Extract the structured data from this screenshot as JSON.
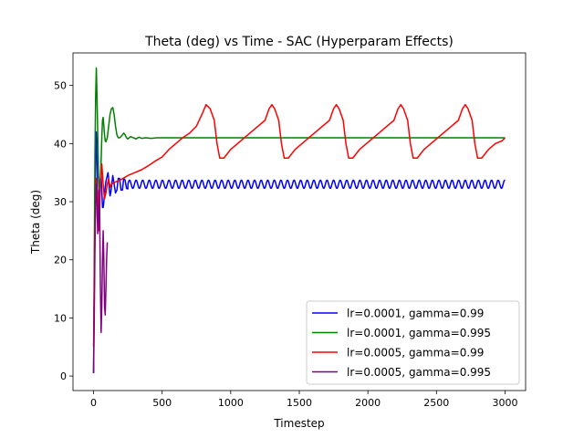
{
  "chart_data": {
    "type": "line",
    "title": "Theta (deg) vs Time - SAC (Hyperparam Effects)",
    "xlabel": "Timestep",
    "ylabel": "Theta (deg)",
    "xlim": [
      -150,
      3150
    ],
    "ylim": [
      -2.5,
      55.6
    ],
    "xticks": [
      0,
      500,
      1000,
      1500,
      2000,
      2500,
      3000
    ],
    "yticks": [
      0,
      10,
      20,
      30,
      40,
      50
    ],
    "legend_position": "lower right",
    "grid": false,
    "series": [
      {
        "name": "lr=0.0001, gamma=0.99",
        "color": "#0000ff",
        "points": [
          [
            0,
            0.5
          ],
          [
            5,
            15
          ],
          [
            10,
            30
          ],
          [
            15,
            40
          ],
          [
            20,
            42
          ],
          [
            25,
            36
          ],
          [
            30,
            30
          ],
          [
            35,
            28
          ],
          [
            40,
            29
          ],
          [
            45,
            32
          ],
          [
            50,
            34
          ],
          [
            55,
            34.5
          ],
          [
            60,
            32
          ],
          [
            65,
            29
          ],
          [
            70,
            29
          ],
          [
            75,
            30
          ],
          [
            80,
            31.5
          ],
          [
            90,
            33.5
          ],
          [
            100,
            34.5
          ],
          [
            105,
            35
          ],
          [
            110,
            34
          ],
          [
            115,
            32
          ],
          [
            120,
            31
          ],
          [
            125,
            31.5
          ],
          [
            130,
            32.5
          ],
          [
            140,
            34.5
          ],
          [
            150,
            33
          ],
          [
            160,
            31.5
          ],
          [
            170,
            32
          ],
          [
            180,
            34
          ],
          [
            190,
            34
          ],
          [
            200,
            32
          ],
          [
            210,
            32
          ],
          [
            220,
            34
          ],
          [
            230,
            33.7
          ],
          [
            240,
            32.3
          ],
          [
            250,
            32.2
          ]
        ],
        "steady": {
          "from": 250,
          "to": 3000,
          "center": 33.0,
          "amplitude": 0.7,
          "period": 48
        }
      },
      {
        "name": "lr=0.0001, gamma=0.995",
        "color": "#008000",
        "points": [
          [
            0,
            0.5
          ],
          [
            5,
            20
          ],
          [
            10,
            38
          ],
          [
            15,
            48
          ],
          [
            20,
            53
          ],
          [
            25,
            48
          ],
          [
            30,
            42
          ],
          [
            35,
            36
          ],
          [
            40,
            33
          ],
          [
            45,
            31
          ],
          [
            50,
            33
          ],
          [
            55,
            37
          ],
          [
            60,
            41
          ],
          [
            65,
            44
          ],
          [
            70,
            44.5
          ],
          [
            75,
            43
          ],
          [
            80,
            41.5
          ],
          [
            85,
            40.5
          ],
          [
            90,
            40.3
          ],
          [
            100,
            41
          ],
          [
            110,
            43
          ],
          [
            120,
            45
          ],
          [
            130,
            46
          ],
          [
            140,
            46.2
          ],
          [
            150,
            45
          ],
          [
            160,
            43
          ],
          [
            170,
            41.5
          ],
          [
            180,
            41
          ],
          [
            190,
            41
          ],
          [
            200,
            41.2
          ],
          [
            210,
            41.5
          ],
          [
            220,
            41.8
          ],
          [
            230,
            41.5
          ],
          [
            240,
            41
          ],
          [
            250,
            40.8
          ],
          [
            270,
            41.2
          ],
          [
            290,
            41
          ],
          [
            310,
            40.8
          ],
          [
            330,
            41.1
          ],
          [
            350,
            40.9
          ],
          [
            380,
            41
          ],
          [
            420,
            40.9
          ],
          [
            460,
            41
          ],
          [
            500,
            41
          ],
          [
            3000,
            41
          ]
        ]
      },
      {
        "name": "lr=0.0005, gamma=0.99",
        "color": "#ff0000",
        "points": [
          [
            0,
            5
          ],
          [
            10,
            25
          ],
          [
            20,
            34
          ],
          [
            30,
            30
          ],
          [
            40,
            25
          ],
          [
            50,
            33
          ],
          [
            60,
            36.5
          ],
          [
            70,
            33
          ],
          [
            80,
            30.5
          ],
          [
            90,
            31.5
          ],
          [
            100,
            33
          ],
          [
            110,
            34
          ],
          [
            120,
            32.5
          ],
          [
            130,
            33
          ],
          [
            150,
            33.3
          ],
          [
            200,
            33.8
          ],
          [
            250,
            34.5
          ],
          [
            300,
            35
          ],
          [
            350,
            35.5
          ],
          [
            400,
            36.2
          ],
          [
            450,
            37
          ],
          [
            500,
            37.7
          ],
          [
            550,
            39
          ],
          [
            600,
            40
          ],
          [
            650,
            41
          ],
          [
            700,
            41.8
          ],
          [
            750,
            43
          ],
          [
            790,
            45
          ],
          [
            820,
            46.7
          ],
          [
            850,
            46
          ],
          [
            880,
            44
          ],
          [
            900,
            40
          ],
          [
            920,
            37.5
          ],
          [
            950,
            37.5
          ],
          [
            1000,
            39
          ],
          [
            1050,
            40
          ],
          [
            1100,
            41
          ],
          [
            1150,
            42
          ],
          [
            1200,
            43
          ],
          [
            1250,
            44
          ],
          [
            1280,
            46
          ],
          [
            1300,
            46.7
          ],
          [
            1320,
            46
          ],
          [
            1350,
            44
          ],
          [
            1370,
            40
          ],
          [
            1390,
            37.5
          ],
          [
            1420,
            37.5
          ],
          [
            1470,
            39
          ],
          [
            1520,
            40
          ],
          [
            1570,
            41
          ],
          [
            1620,
            42
          ],
          [
            1670,
            43
          ],
          [
            1720,
            44
          ],
          [
            1750,
            46
          ],
          [
            1770,
            46.7
          ],
          [
            1790,
            46
          ],
          [
            1820,
            44
          ],
          [
            1840,
            40
          ],
          [
            1860,
            37.5
          ],
          [
            1890,
            37.5
          ],
          [
            1940,
            39
          ],
          [
            1990,
            40
          ],
          [
            2040,
            41
          ],
          [
            2090,
            42
          ],
          [
            2140,
            43
          ],
          [
            2190,
            44
          ],
          [
            2220,
            46
          ],
          [
            2240,
            46.7
          ],
          [
            2260,
            46
          ],
          [
            2290,
            44
          ],
          [
            2310,
            40
          ],
          [
            2330,
            37.5
          ],
          [
            2360,
            37.5
          ],
          [
            2410,
            39
          ],
          [
            2460,
            40
          ],
          [
            2510,
            41
          ],
          [
            2560,
            42
          ],
          [
            2610,
            43
          ],
          [
            2660,
            44
          ],
          [
            2690,
            46
          ],
          [
            2710,
            46.7
          ],
          [
            2730,
            46
          ],
          [
            2760,
            44
          ],
          [
            2780,
            40
          ],
          [
            2800,
            37.5
          ],
          [
            2830,
            37.5
          ],
          [
            2880,
            39
          ],
          [
            2930,
            40
          ],
          [
            2980,
            40.5
          ],
          [
            3000,
            41
          ]
        ]
      },
      {
        "name": "lr=0.0005, gamma=0.995",
        "color": "#800080",
        "points": [
          [
            0,
            0.5
          ],
          [
            5,
            10
          ],
          [
            10,
            22
          ],
          [
            15,
            30
          ],
          [
            20,
            33
          ],
          [
            25,
            30
          ],
          [
            30,
            24.5
          ],
          [
            35,
            27
          ],
          [
            40,
            32
          ],
          [
            45,
            27
          ],
          [
            50,
            15
          ],
          [
            55,
            7.5
          ],
          [
            60,
            12
          ],
          [
            65,
            20
          ],
          [
            70,
            25
          ],
          [
            75,
            20
          ],
          [
            80,
            12
          ],
          [
            85,
            10.5
          ],
          [
            90,
            15
          ],
          [
            95,
            20
          ],
          [
            100,
            23
          ]
        ]
      }
    ]
  }
}
